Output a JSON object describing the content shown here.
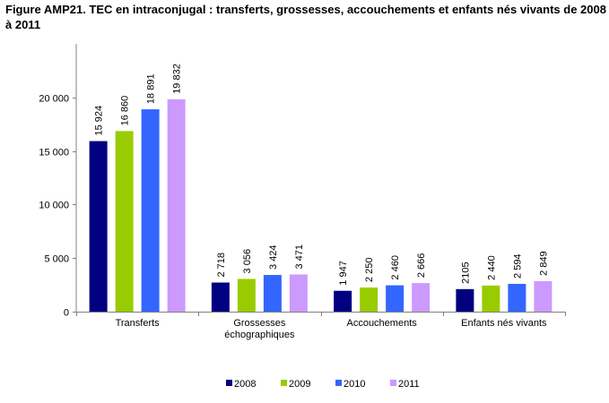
{
  "title": "Figure AMP21. TEC en intraconjugal : transferts, grossesses, accouchements et enfants nés vivants de 2008 à 2011",
  "chart_data": {
    "type": "bar",
    "categories": [
      [
        "Transferts"
      ],
      [
        "Grossesses",
        "échographiques"
      ],
      [
        "Accouchements"
      ],
      [
        "Enfants nés vivants"
      ]
    ],
    "series": [
      {
        "name": "2008",
        "color": "#000080",
        "values": [
          15924,
          2718,
          1947,
          2105
        ],
        "labels": [
          "15 924",
          "2 718",
          "1 947",
          "2105"
        ]
      },
      {
        "name": "2009",
        "color": "#99CC00",
        "values": [
          16860,
          3056,
          2250,
          2440
        ],
        "labels": [
          "16 860",
          "3 056",
          "2 250",
          "2 440"
        ]
      },
      {
        "name": "2010",
        "color": "#3366FF",
        "values": [
          18891,
          3424,
          2460,
          2594
        ],
        "labels": [
          "18 891",
          "3 424",
          "2 460",
          "2 594"
        ]
      },
      {
        "name": "2011",
        "color": "#CC99FF",
        "values": [
          19832,
          3471,
          2666,
          2849
        ],
        "labels": [
          "19 832",
          "3 471",
          "2 666",
          "2 849"
        ]
      }
    ],
    "yticks": [
      {
        "value": 0,
        "label": "0"
      },
      {
        "value": 5000,
        "label": "5 000"
      },
      {
        "value": 10000,
        "label": "10 000"
      },
      {
        "value": 15000,
        "label": "15 000"
      },
      {
        "value": 20000,
        "label": "20 000"
      }
    ],
    "ylim": [
      0,
      25000
    ],
    "grid": false,
    "legend_position": "bottom"
  }
}
